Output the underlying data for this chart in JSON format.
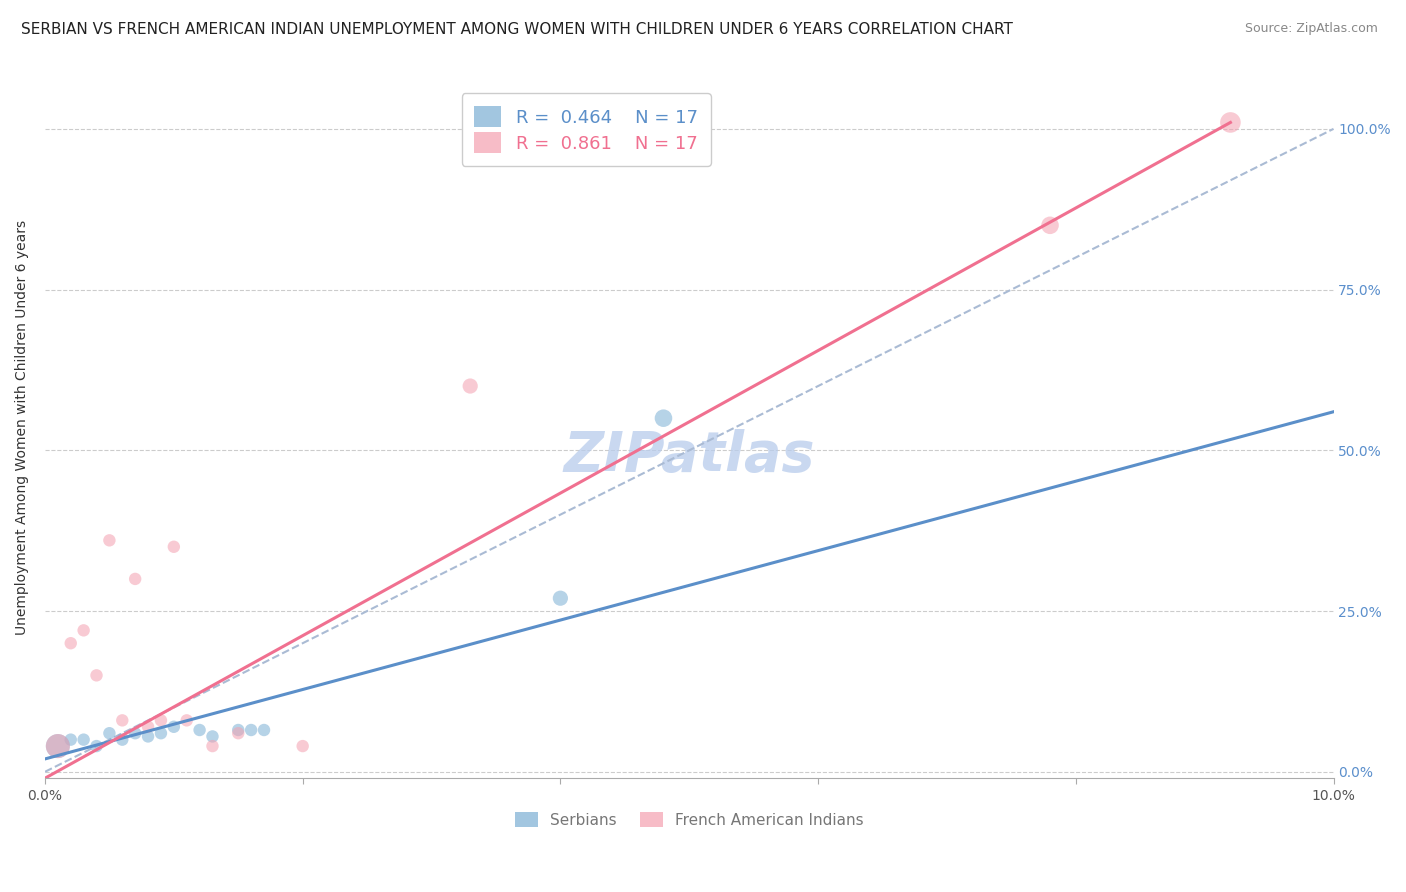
{
  "title": "SERBIAN VS FRENCH AMERICAN INDIAN UNEMPLOYMENT AMONG WOMEN WITH CHILDREN UNDER 6 YEARS CORRELATION CHART",
  "source": "Source: ZipAtlas.com",
  "ylabel": "Unemployment Among Women with Children Under 6 years",
  "watermark": "ZIPatlas",
  "xlim": [
    0.0,
    0.1
  ],
  "ylim": [
    -0.01,
    1.08
  ],
  "right_yticks": [
    0.0,
    0.25,
    0.5,
    0.75,
    1.0
  ],
  "right_yticklabels": [
    "0.0%",
    "25.0%",
    "50.0%",
    "75.0%",
    "100.0%"
  ],
  "xticks": [
    0.0,
    0.02,
    0.04,
    0.06,
    0.08,
    0.1
  ],
  "xticklabels": [
    "0.0%",
    "",
    "",
    "",
    "",
    "10.0%"
  ],
  "legend_serbian_R": "0.464",
  "legend_serbian_N": "17",
  "legend_french_R": "0.861",
  "legend_french_N": "17",
  "serbian_color": "#7bafd4",
  "french_color": "#f4a0b0",
  "serbian_line_color": "#5b8fc9",
  "french_line_color": "#f07090",
  "ref_line_color": "#aabbd4",
  "serbian_x": [
    0.001,
    0.002,
    0.003,
    0.004,
    0.005,
    0.006,
    0.007,
    0.008,
    0.009,
    0.01,
    0.012,
    0.013,
    0.015,
    0.016,
    0.017,
    0.04,
    0.048
  ],
  "serbian_y": [
    0.04,
    0.05,
    0.05,
    0.04,
    0.06,
    0.05,
    0.06,
    0.055,
    0.06,
    0.07,
    0.065,
    0.055,
    0.065,
    0.065,
    0.065,
    0.27,
    0.55
  ],
  "french_x": [
    0.001,
    0.002,
    0.003,
    0.004,
    0.005,
    0.006,
    0.007,
    0.008,
    0.009,
    0.01,
    0.011,
    0.013,
    0.015,
    0.02,
    0.033,
    0.078,
    0.092
  ],
  "french_y": [
    0.04,
    0.2,
    0.22,
    0.15,
    0.36,
    0.08,
    0.3,
    0.07,
    0.08,
    0.35,
    0.08,
    0.04,
    0.06,
    0.04,
    0.6,
    0.85,
    1.01
  ],
  "serbian_marker_sizes": [
    300,
    80,
    80,
    80,
    80,
    80,
    80,
    80,
    80,
    80,
    80,
    80,
    80,
    80,
    80,
    120,
    160
  ],
  "french_marker_sizes": [
    300,
    80,
    80,
    80,
    80,
    80,
    80,
    80,
    80,
    80,
    80,
    80,
    80,
    80,
    120,
    160,
    220
  ],
  "serbian_line_x": [
    0.0,
    0.1
  ],
  "serbian_line_y": [
    0.02,
    0.56
  ],
  "french_line_x": [
    0.0,
    0.092
  ],
  "french_line_y": [
    -0.01,
    1.01
  ],
  "ref_line_x": [
    0.0,
    0.1
  ],
  "ref_line_y": [
    0.0,
    1.0
  ],
  "title_fontsize": 11,
  "source_fontsize": 9,
  "axis_label_fontsize": 10,
  "tick_fontsize": 10,
  "legend_fontsize": 13,
  "watermark_fontsize": 40
}
